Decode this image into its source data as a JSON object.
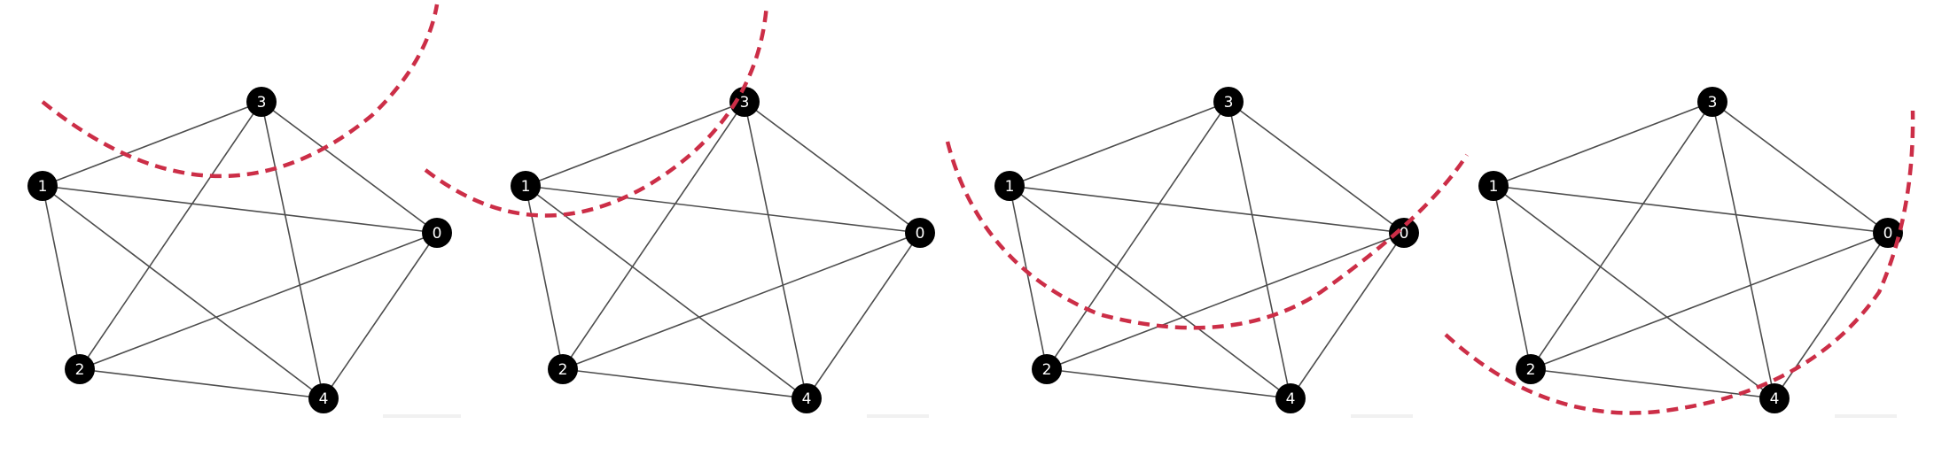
{
  "graph": {
    "nodes": [
      {
        "id": "0",
        "label": "0"
      },
      {
        "id": "1",
        "label": "1"
      },
      {
        "id": "2",
        "label": "2"
      },
      {
        "id": "3",
        "label": "3"
      },
      {
        "id": "4",
        "label": "4"
      }
    ],
    "edges": [
      [
        "0",
        "1"
      ],
      [
        "0",
        "2"
      ],
      [
        "0",
        "3"
      ],
      [
        "0",
        "4"
      ],
      [
        "1",
        "2"
      ],
      [
        "1",
        "3"
      ],
      [
        "1",
        "4"
      ],
      [
        "2",
        "3"
      ],
      [
        "2",
        "4"
      ],
      [
        "3",
        "4"
      ]
    ]
  },
  "panels": [
    {
      "id": "panel-1",
      "cut_color": "#cc2e47"
    },
    {
      "id": "panel-2",
      "cut_color": "#cc2e47"
    },
    {
      "id": "panel-3",
      "cut_color": "#cc2e47"
    },
    {
      "id": "panel-4",
      "cut_color": "#cc2e47"
    }
  ],
  "colors": {
    "node": "#000000",
    "edge": "#4d4d4d",
    "cut": "#cc2e47",
    "background": "#ffffff"
  }
}
